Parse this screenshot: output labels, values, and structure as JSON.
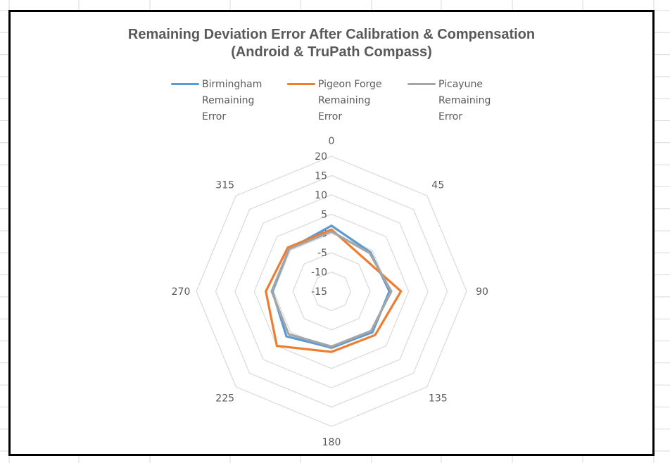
{
  "chart_data": {
    "type": "radar",
    "title": "Remaining Deviation Error After Calibration & Compensation",
    "subtitle": "(Android & TruPath Compass)",
    "categories": [
      "0",
      "45",
      "90",
      "135",
      "180",
      "225",
      "270",
      "315"
    ],
    "radial_ticks": [
      "20",
      "15",
      "10",
      "5",
      "0",
      "-5",
      "-10",
      "-15"
    ],
    "rlim": [
      -15,
      20
    ],
    "tick_step": 5,
    "grid": true,
    "legend_position": "top",
    "series": [
      {
        "name": "Birmingham Remaining Error",
        "label_lines": [
          "Birmingham",
          "Remaining",
          "Error"
        ],
        "color": "#5b9bd5",
        "values": [
          2,
          -0.7,
          0,
          0,
          -0.4,
          1.5,
          0.3,
          0.5
        ]
      },
      {
        "name": "Pigeon Forge Remaining Error",
        "label_lines": [
          "Pigeon Forge",
          "Remaining",
          "Error"
        ],
        "color": "#ed7d31",
        "values": [
          1,
          -3,
          3,
          1,
          0.7,
          5,
          2,
          1
        ]
      },
      {
        "name": "Picayune Remaining Error",
        "label_lines": [
          "Picayune",
          "Remaining",
          "Error"
        ],
        "color": "#a5a5a5",
        "values": [
          0.5,
          -1,
          0.5,
          -0.5,
          -0.7,
          0.7,
          0.5,
          0.5
        ]
      }
    ]
  }
}
